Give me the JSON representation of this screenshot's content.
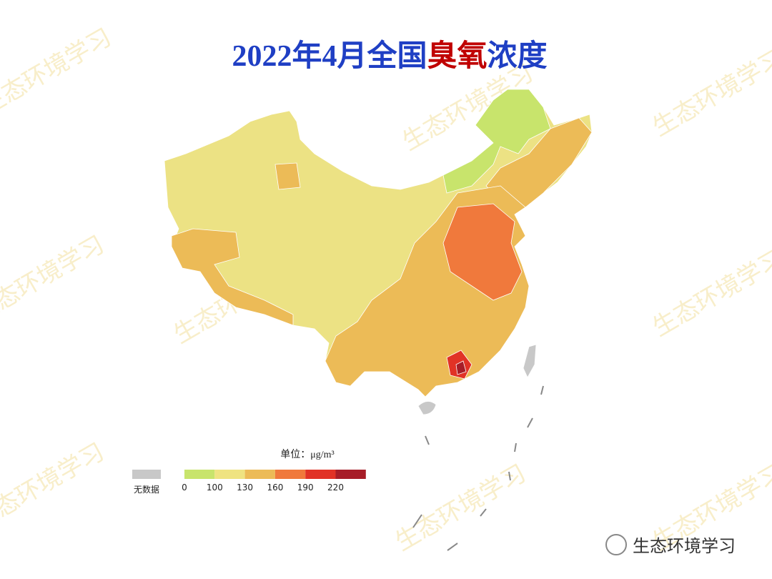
{
  "title": {
    "parts": [
      {
        "text": "2022年4月全国",
        "color": "#1f3fc4"
      },
      {
        "text": "臭氧",
        "color": "#c00000"
      },
      {
        "text": "浓度",
        "color": "#1f3fc4"
      }
    ]
  },
  "legend": {
    "unit": "单位：μg/m³",
    "no_data": {
      "label": "无数据",
      "color": "#c8c8c8"
    },
    "ticks": [
      0,
      100,
      130,
      160,
      190,
      220
    ],
    "colors": [
      "#c8e46c",
      "#efe381",
      "#ecbb57",
      "#f0793c",
      "#e13226",
      "#a71d28"
    ]
  },
  "watermark": "生态环境学习",
  "brand": "生态环境学习"
}
